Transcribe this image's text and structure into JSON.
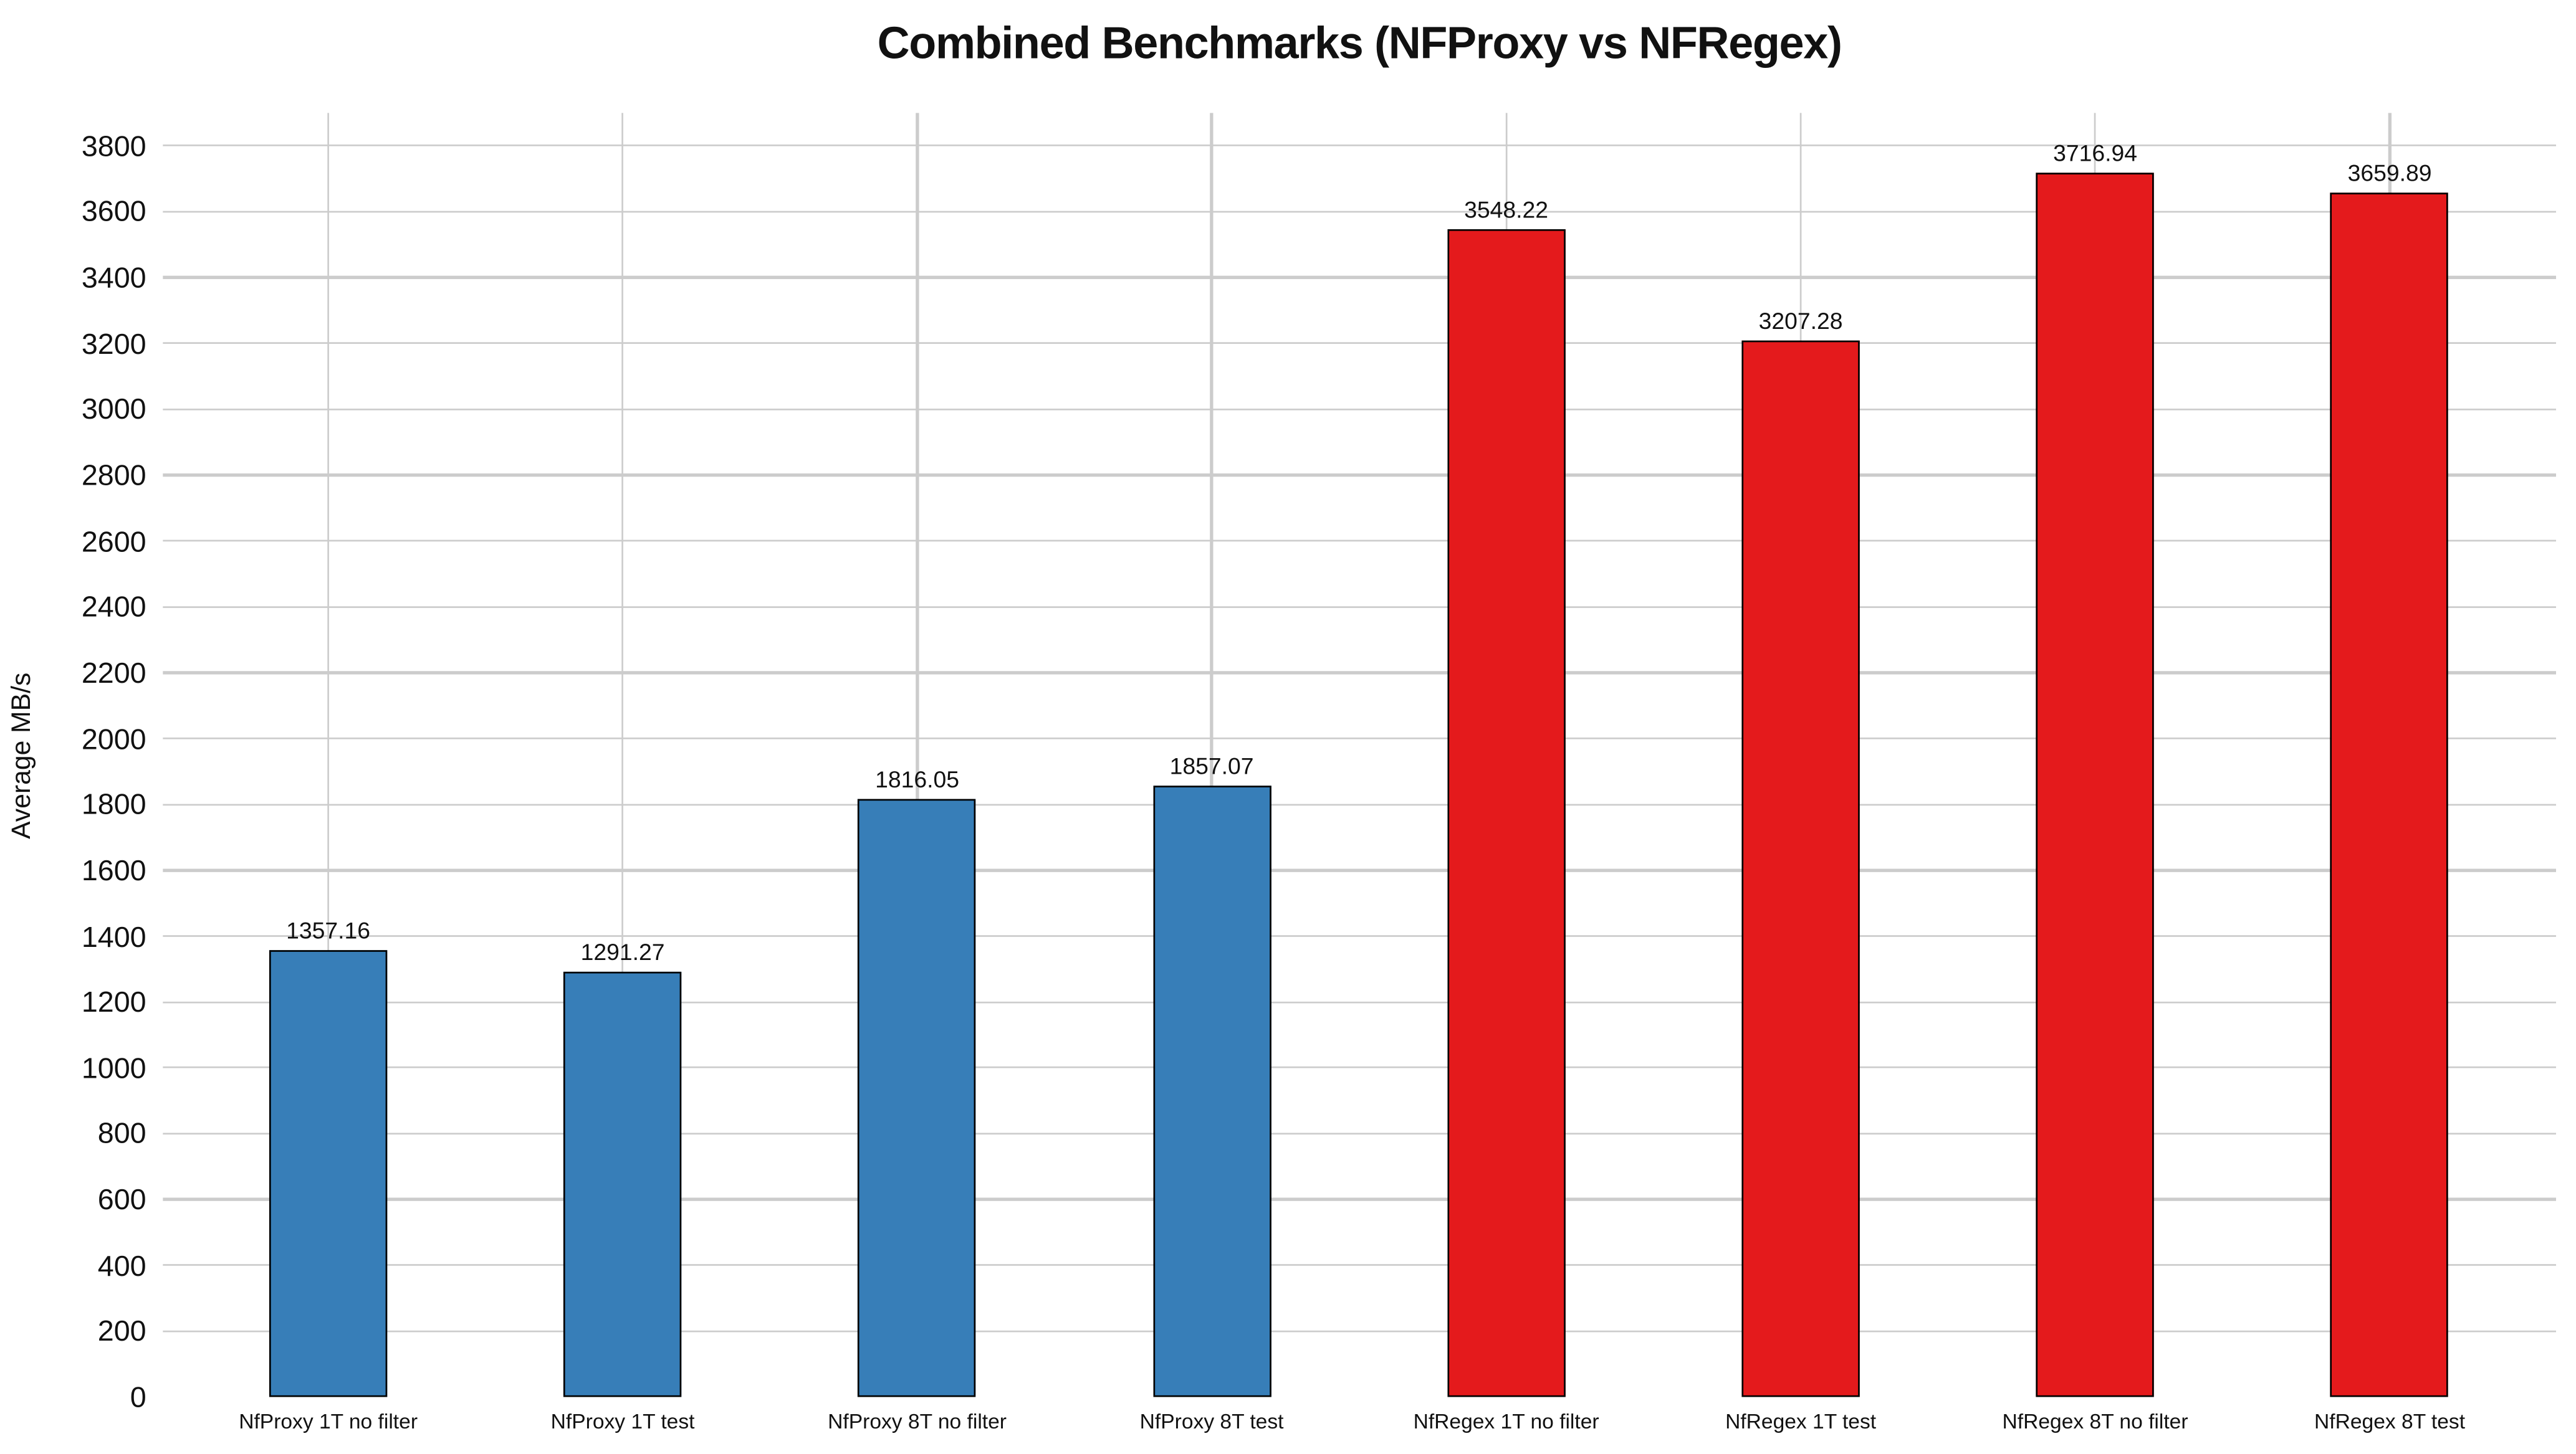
{
  "chart_data": {
    "type": "bar",
    "title": "Combined Benchmarks (NFProxy vs NFRegex)",
    "xlabel": "",
    "ylabel": "Average MB/s",
    "categories": [
      "NfProxy 1T no filter",
      "NfProxy 1T test",
      "NfProxy 8T no filter",
      "NfProxy 8T test",
      "NfRegex 1T no filter",
      "NfRegex 1T test",
      "NfRegex 8T no filter",
      "NfRegex 8T test"
    ],
    "values": [
      1357.16,
      1291.27,
      1816.05,
      1857.07,
      3548.22,
      3207.28,
      3716.94,
      3659.89
    ],
    "value_labels": [
      "1357.16",
      "1291.27",
      "1816.05",
      "1857.07",
      "3548.22",
      "3207.28",
      "3716.94",
      "3659.89"
    ],
    "bar_colors": [
      "#377eb8",
      "#377eb8",
      "#377eb8",
      "#377eb8",
      "#e41a1c",
      "#e41a1c",
      "#e41a1c",
      "#e41a1c"
    ],
    "group_colors": {
      "NfProxy": "#377eb8",
      "NfRegex": "#e41a1c"
    },
    "bar_edge_color": "#000000",
    "grid_color": "#cccccc",
    "text_color": "#111111",
    "background_color": "#ffffff",
    "ylim": [
      0,
      3900
    ],
    "yticks": [
      0,
      200,
      400,
      600,
      800,
      1000,
      1200,
      1400,
      1600,
      1800,
      2000,
      2200,
      2400,
      2600,
      2800,
      3000,
      3200,
      3400,
      3600,
      3800
    ],
    "grid": "on",
    "legend_position": "none"
  }
}
